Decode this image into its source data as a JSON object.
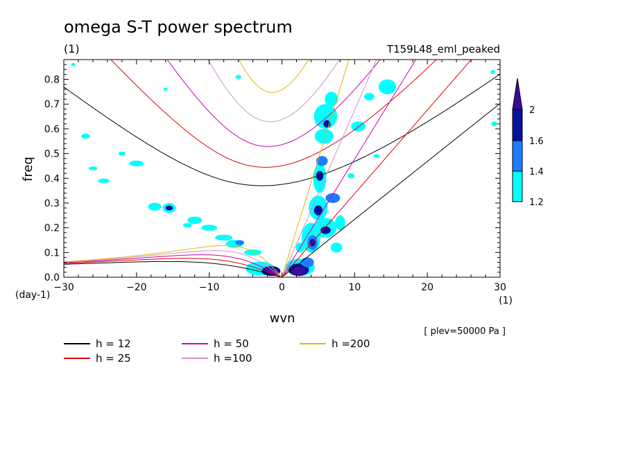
{
  "chart_data": {
    "type": "contour",
    "title": "omega S-T power spectrum",
    "subtitle_left": "(1)",
    "subtitle_right": "T159L48_eml_peaked",
    "xlabel": "wvn",
    "ylabel": "freq",
    "x_unit": "(1)",
    "y_unit": "(day-1)",
    "annotation": "[ plev=50000 Pa ]",
    "xlim": [
      -30,
      30
    ],
    "ylim": [
      0,
      0.88
    ],
    "x_ticks": [
      -30,
      -20,
      -10,
      0,
      10,
      20,
      30
    ],
    "y_ticks": [
      0.0,
      0.1,
      0.2,
      0.3,
      0.4,
      0.5,
      0.6,
      0.7,
      0.8
    ],
    "y_tick_labels": [
      "0.0",
      "0.1",
      "0.2",
      "0.3",
      "0.4",
      "0.5",
      "0.6",
      "0.7",
      "0.8"
    ],
    "colorbar": {
      "levels": [
        1.2,
        1.4,
        1.6,
        2
      ],
      "labels": [
        "1.2",
        "1.4",
        "1.6",
        "2"
      ],
      "colors": [
        "#00ffff",
        "#1e7bff",
        "#00129c",
        "#3e0a98"
      ]
    },
    "series": [
      {
        "name": "h = 12",
        "color": "#000000"
      },
      {
        "name": "h = 25",
        "color": "#e00000"
      },
      {
        "name": "h = 50",
        "color": "#cc00aa"
      },
      {
        "name": "h =100",
        "color": "#d090d0"
      },
      {
        "name": "h =200",
        "color": "#e0b800"
      }
    ],
    "blobs": [
      {
        "x": -28.7,
        "y": 0.86,
        "rx": 0.3,
        "ry": 0.006,
        "level": 0
      },
      {
        "x": -27.0,
        "y": 0.57,
        "rx": 0.6,
        "ry": 0.01,
        "level": 0
      },
      {
        "x": -26.0,
        "y": 0.44,
        "rx": 0.6,
        "ry": 0.008,
        "level": 0
      },
      {
        "x": -20.0,
        "y": 0.46,
        "rx": 1.0,
        "ry": 0.012,
        "level": 0
      },
      {
        "x": -24.5,
        "y": 0.39,
        "rx": 0.8,
        "ry": 0.009,
        "level": 0
      },
      {
        "x": -17.5,
        "y": 0.285,
        "rx": 0.9,
        "ry": 0.016,
        "level": 0
      },
      {
        "x": -15.5,
        "y": 0.28,
        "rx": 0.9,
        "ry": 0.02,
        "level": 0
      },
      {
        "x": -15.5,
        "y": 0.28,
        "rx": 0.5,
        "ry": 0.01,
        "level": 2
      },
      {
        "x": -12.0,
        "y": 0.23,
        "rx": 1.0,
        "ry": 0.015,
        "level": 0
      },
      {
        "x": -10.0,
        "y": 0.2,
        "rx": 1.1,
        "ry": 0.012,
        "level": 0
      },
      {
        "x": -13.0,
        "y": 0.21,
        "rx": 0.6,
        "ry": 0.009,
        "level": 0
      },
      {
        "x": -8.0,
        "y": 0.16,
        "rx": 1.2,
        "ry": 0.012,
        "level": 0
      },
      {
        "x": -6.5,
        "y": 0.135,
        "rx": 1.2,
        "ry": 0.016,
        "level": 0
      },
      {
        "x": -5.8,
        "y": 0.14,
        "rx": 0.6,
        "ry": 0.01,
        "level": 1
      },
      {
        "x": -4.0,
        "y": 0.1,
        "rx": 1.2,
        "ry": 0.012,
        "level": 0
      },
      {
        "x": -3.0,
        "y": 0.035,
        "rx": 2.0,
        "ry": 0.028,
        "level": 0
      },
      {
        "x": -1.5,
        "y": 0.025,
        "rx": 1.3,
        "ry": 0.02,
        "level": 2
      },
      {
        "x": -1.2,
        "y": 0.02,
        "rx": 0.8,
        "ry": 0.015,
        "level": 3
      },
      {
        "x": 2.5,
        "y": 0.04,
        "rx": 2.0,
        "ry": 0.035,
        "level": 0
      },
      {
        "x": 2.3,
        "y": 0.03,
        "rx": 1.4,
        "ry": 0.025,
        "level": 2
      },
      {
        "x": 2.2,
        "y": 0.025,
        "rx": 1.0,
        "ry": 0.018,
        "level": 3
      },
      {
        "x": 3.5,
        "y": 0.06,
        "rx": 0.9,
        "ry": 0.02,
        "level": 1
      },
      {
        "x": 4.0,
        "y": 0.16,
        "rx": 1.3,
        "ry": 0.06,
        "level": 0
      },
      {
        "x": 4.2,
        "y": 0.14,
        "rx": 0.7,
        "ry": 0.03,
        "level": 1
      },
      {
        "x": 4.2,
        "y": 0.14,
        "rx": 0.4,
        "ry": 0.015,
        "level": 2
      },
      {
        "x": 5.0,
        "y": 0.28,
        "rx": 1.3,
        "ry": 0.05,
        "level": 0
      },
      {
        "x": 5.0,
        "y": 0.27,
        "rx": 0.6,
        "ry": 0.02,
        "level": 2
      },
      {
        "x": 5.2,
        "y": 0.4,
        "rx": 0.9,
        "ry": 0.06,
        "level": 0
      },
      {
        "x": 5.2,
        "y": 0.41,
        "rx": 0.5,
        "ry": 0.02,
        "level": 2
      },
      {
        "x": 5.5,
        "y": 0.47,
        "rx": 0.8,
        "ry": 0.02,
        "level": 1
      },
      {
        "x": 5.8,
        "y": 0.57,
        "rx": 1.3,
        "ry": 0.03,
        "level": 0
      },
      {
        "x": 6.0,
        "y": 0.65,
        "rx": 1.6,
        "ry": 0.05,
        "level": 0
      },
      {
        "x": 6.2,
        "y": 0.62,
        "rx": 0.5,
        "ry": 0.015,
        "level": 2
      },
      {
        "x": 6.8,
        "y": 0.72,
        "rx": 0.9,
        "ry": 0.03,
        "level": 0
      },
      {
        "x": 8.0,
        "y": 0.22,
        "rx": 0.7,
        "ry": 0.03,
        "level": 0
      },
      {
        "x": 7.0,
        "y": 0.32,
        "rx": 1.0,
        "ry": 0.02,
        "level": 1
      },
      {
        "x": 6.0,
        "y": 0.2,
        "rx": 1.5,
        "ry": 0.04,
        "level": 0
      },
      {
        "x": 6.0,
        "y": 0.19,
        "rx": 0.7,
        "ry": 0.015,
        "level": 2
      },
      {
        "x": 7.5,
        "y": 0.12,
        "rx": 0.8,
        "ry": 0.02,
        "level": 0
      },
      {
        "x": 9.5,
        "y": 0.41,
        "rx": 0.5,
        "ry": 0.01,
        "level": 0
      },
      {
        "x": 10.5,
        "y": 0.61,
        "rx": 1.0,
        "ry": 0.02,
        "level": 0
      },
      {
        "x": 12.0,
        "y": 0.73,
        "rx": 0.7,
        "ry": 0.015,
        "level": 0
      },
      {
        "x": 14.5,
        "y": 0.77,
        "rx": 1.2,
        "ry": 0.03,
        "level": 0
      },
      {
        "x": 13.0,
        "y": 0.49,
        "rx": 0.4,
        "ry": 0.008,
        "level": 0
      },
      {
        "x": -6.0,
        "y": 0.81,
        "rx": 0.4,
        "ry": 0.008,
        "level": 0
      },
      {
        "x": -16.0,
        "y": 0.76,
        "rx": 0.3,
        "ry": 0.006,
        "level": 0
      },
      {
        "x": -22.0,
        "y": 0.5,
        "rx": 0.5,
        "ry": 0.008,
        "level": 0
      },
      {
        "x": 29.2,
        "y": 0.62,
        "rx": 0.4,
        "ry": 0.01,
        "level": 0
      },
      {
        "x": 29.0,
        "y": 0.83,
        "rx": 0.3,
        "ry": 0.008,
        "level": 0
      },
      {
        "x": 2.5,
        "y": 0.12,
        "rx": 0.6,
        "ry": 0.02,
        "level": 0
      }
    ]
  }
}
